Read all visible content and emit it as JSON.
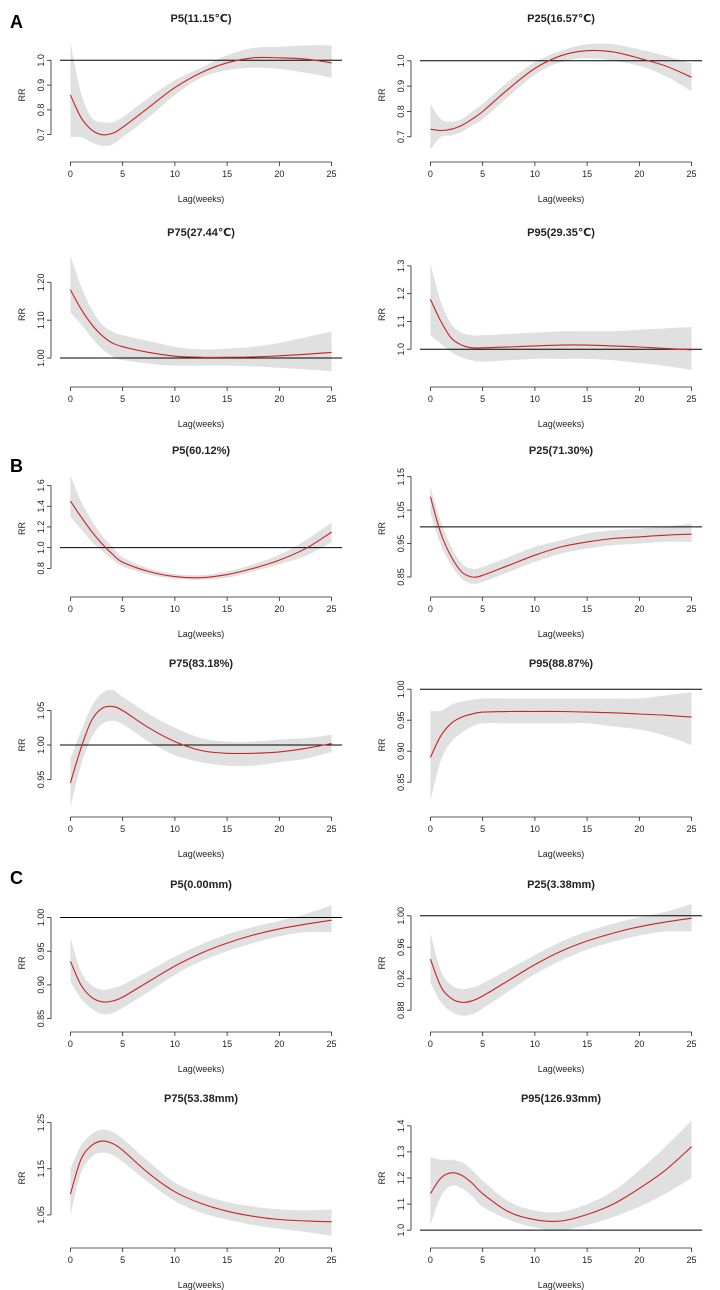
{
  "figure": {
    "panel_labels": [
      "A",
      "B",
      "C"
    ]
  },
  "colors": {
    "ci": "#e0e0e0",
    "line": "#cc2222",
    "axis": "#222222",
    "ref": "#000000"
  },
  "chart_data": [
    {
      "type": "line",
      "group": "A",
      "title": "P5(11.15℃)",
      "xlabel": "Lag(weeks)",
      "ylabel": "RR",
      "x": [
        0,
        1,
        2,
        3,
        4,
        5,
        7.5,
        10,
        12.5,
        15,
        17.5,
        20,
        22.5,
        25
      ],
      "y": [
        0.86,
        0.77,
        0.72,
        0.7,
        0.705,
        0.73,
        0.81,
        0.89,
        0.95,
        0.99,
        1.01,
        1.01,
        1.005,
        0.99
      ],
      "lower": [
        0.69,
        0.69,
        0.67,
        0.655,
        0.66,
        0.69,
        0.77,
        0.86,
        0.93,
        0.96,
        0.97,
        0.965,
        0.95,
        0.93
      ],
      "upper": [
        1.07,
        0.87,
        0.77,
        0.75,
        0.75,
        0.77,
        0.85,
        0.92,
        0.97,
        1.02,
        1.05,
        1.055,
        1.06,
        1.06
      ],
      "yticks": [
        0.7,
        0.8,
        0.9,
        1.0
      ],
      "ytick_labels": [
        "0.7",
        "0.8",
        "0.9",
        "1.0"
      ],
      "xticks": [
        0,
        5,
        10,
        15,
        20,
        25
      ],
      "xtick_labels": [
        "0",
        "5",
        "10",
        "15",
        "20",
        "25"
      ],
      "ylim": [
        0.63,
        1.09
      ],
      "xlim": [
        -1,
        26
      ],
      "reference": 1.0
    },
    {
      "type": "line",
      "group": "A",
      "title": "P25(16.57℃)",
      "xlabel": "Lag(weeks)",
      "ylabel": "RR",
      "x": [
        0,
        1,
        2,
        3,
        4,
        5,
        7.5,
        10,
        12.5,
        15,
        17.5,
        20,
        22.5,
        25
      ],
      "y": [
        0.73,
        0.725,
        0.73,
        0.745,
        0.77,
        0.8,
        0.89,
        0.97,
        1.02,
        1.04,
        1.035,
        1.01,
        0.98,
        0.935
      ],
      "lower": [
        0.65,
        0.7,
        0.705,
        0.72,
        0.745,
        0.77,
        0.86,
        0.945,
        0.995,
        1.01,
        1.0,
        0.98,
        0.94,
        0.88
      ],
      "upper": [
        0.83,
        0.77,
        0.76,
        0.77,
        0.8,
        0.83,
        0.92,
        0.995,
        1.04,
        1.065,
        1.065,
        1.045,
        1.02,
        0.99
      ],
      "yticks": [
        0.7,
        0.8,
        0.9,
        1.0
      ],
      "ytick_labels": [
        "0.7",
        "0.8",
        "0.9",
        "1.0"
      ],
      "xticks": [
        0,
        5,
        10,
        15,
        20,
        25
      ],
      "xtick_labels": [
        "0",
        "5",
        "10",
        "15",
        "20",
        "25"
      ],
      "ylim": [
        0.64,
        1.09
      ],
      "xlim": [
        -1,
        26
      ],
      "reference": 1.0
    },
    {
      "type": "line",
      "group": "A",
      "title": "P75(27.44℃)",
      "xlabel": "Lag(weeks)",
      "ylabel": "RR",
      "x": [
        0,
        1,
        2,
        3,
        4,
        5,
        7.5,
        10,
        12.5,
        15,
        17.5,
        20,
        22.5,
        25
      ],
      "y": [
        1.18,
        1.13,
        1.09,
        1.06,
        1.04,
        1.03,
        1.015,
        1.005,
        1.002,
        1.002,
        1.003,
        1.006,
        1.01,
        1.015
      ],
      "lower": [
        1.12,
        1.09,
        1.055,
        1.025,
        1.005,
        0.995,
        0.985,
        0.98,
        0.98,
        0.98,
        0.978,
        0.974,
        0.97,
        0.965
      ],
      "upper": [
        1.27,
        1.19,
        1.13,
        1.09,
        1.07,
        1.06,
        1.045,
        1.03,
        1.023,
        1.025,
        1.03,
        1.04,
        1.055,
        1.07
      ],
      "yticks": [
        1.0,
        1.1,
        1.2
      ],
      "ytick_labels": [
        "1.00",
        "1.10",
        "1.20"
      ],
      "xticks": [
        0,
        5,
        10,
        15,
        20,
        25
      ],
      "xtick_labels": [
        "0",
        "5",
        "10",
        "15",
        "20",
        "25"
      ],
      "ylim": [
        0.95,
        1.28
      ],
      "xlim": [
        -1,
        26
      ],
      "reference": 1.0
    },
    {
      "type": "line",
      "group": "A",
      "title": "P95(29.35℃)",
      "xlabel": "Lag(weeks)",
      "ylabel": "RR",
      "x": [
        0,
        1,
        2,
        3,
        4,
        5,
        7.5,
        10,
        12.5,
        15,
        17.5,
        20,
        22.5,
        25
      ],
      "y": [
        1.18,
        1.1,
        1.04,
        1.015,
        1.005,
        1.005,
        1.008,
        1.012,
        1.015,
        1.015,
        1.012,
        1.008,
        1.003,
        0.998
      ],
      "lower": [
        1.05,
        1.02,
        0.99,
        0.97,
        0.96,
        0.955,
        0.96,
        0.965,
        0.965,
        0.965,
        0.96,
        0.95,
        0.94,
        0.925
      ],
      "upper": [
        1.31,
        1.17,
        1.09,
        1.06,
        1.05,
        1.05,
        1.055,
        1.06,
        1.065,
        1.065,
        1.065,
        1.07,
        1.075,
        1.08
      ],
      "yticks": [
        1.0,
        1.1,
        1.2,
        1.3
      ],
      "ytick_labels": [
        "1.0",
        "1.1",
        "1.2",
        "1.3"
      ],
      "xticks": [
        0,
        5,
        10,
        15,
        20,
        25
      ],
      "xtick_labels": [
        "0",
        "5",
        "10",
        "15",
        "20",
        "25"
      ],
      "ylim": [
        0.9,
        1.35
      ],
      "xlim": [
        -1,
        26
      ],
      "reference": 1.0
    },
    {
      "type": "line",
      "group": "B",
      "title": "P5(60.12%)",
      "xlabel": "Lag(weeks)",
      "ylabel": "RR",
      "x": [
        0,
        1,
        2,
        3,
        4,
        5,
        7.5,
        10,
        12.5,
        15,
        17.5,
        20,
        22.5,
        25
      ],
      "y": [
        1.45,
        1.3,
        1.16,
        1.04,
        0.94,
        0.86,
        0.77,
        0.72,
        0.71,
        0.74,
        0.8,
        0.88,
        0.99,
        1.15
      ],
      "lower": [
        1.3,
        1.18,
        1.06,
        0.97,
        0.89,
        0.82,
        0.74,
        0.7,
        0.69,
        0.71,
        0.77,
        0.84,
        0.92,
        1.05
      ],
      "upper": [
        1.7,
        1.45,
        1.27,
        1.12,
        1.01,
        0.91,
        0.8,
        0.745,
        0.735,
        0.77,
        0.84,
        0.93,
        1.07,
        1.24
      ],
      "yticks": [
        0.8,
        1.0,
        1.2,
        1.4,
        1.6
      ],
      "ytick_labels": [
        "0.8",
        "1.0",
        "1.2",
        "1.4",
        "1.6"
      ],
      "xticks": [
        0,
        5,
        10,
        15,
        20,
        25
      ],
      "xtick_labels": [
        "0",
        "5",
        "10",
        "15",
        "20",
        "25"
      ],
      "ylim": [
        0.62,
        1.75
      ],
      "xlim": [
        -1,
        26
      ],
      "reference": 1.0
    },
    {
      "type": "line",
      "group": "B",
      "title": "P25(71.30%)",
      "xlabel": "Lag(weeks)",
      "ylabel": "RR",
      "x": [
        0,
        1,
        2,
        3,
        4,
        5,
        7.5,
        10,
        12.5,
        15,
        17.5,
        20,
        22.5,
        25
      ],
      "y": [
        1.09,
        0.98,
        0.91,
        0.865,
        0.85,
        0.855,
        0.885,
        0.915,
        0.94,
        0.955,
        0.965,
        0.97,
        0.975,
        0.978
      ],
      "lower": [
        1.04,
        0.945,
        0.885,
        0.845,
        0.83,
        0.835,
        0.865,
        0.895,
        0.92,
        0.935,
        0.945,
        0.95,
        0.955,
        0.955
      ],
      "upper": [
        1.12,
        1.015,
        0.94,
        0.89,
        0.875,
        0.88,
        0.91,
        0.94,
        0.96,
        0.98,
        0.99,
        0.995,
        1.0,
        1.01
      ],
      "yticks": [
        0.85,
        0.95,
        1.05,
        1.15
      ],
      "ytick_labels": [
        "0.85",
        "0.95",
        "1.05",
        "1.15"
      ],
      "xticks": [
        0,
        5,
        10,
        15,
        20,
        25
      ],
      "xtick_labels": [
        "0",
        "5",
        "10",
        "15",
        "20",
        "25"
      ],
      "ylim": [
        0.82,
        1.17
      ],
      "xlim": [
        -1,
        26
      ],
      "reference": 1.0
    },
    {
      "type": "line",
      "group": "B",
      "title": "P75(83.18%)",
      "xlabel": "Lag(weeks)",
      "ylabel": "RR",
      "x": [
        0,
        1,
        2,
        3,
        4,
        5,
        7.5,
        10,
        12.5,
        15,
        17.5,
        20,
        22.5,
        25
      ],
      "y": [
        0.945,
        0.995,
        1.035,
        1.053,
        1.056,
        1.05,
        1.025,
        1.005,
        0.992,
        0.988,
        0.988,
        0.99,
        0.995,
        1.002
      ],
      "lower": [
        0.91,
        0.97,
        1.01,
        1.03,
        1.035,
        1.03,
        1.005,
        0.985,
        0.975,
        0.97,
        0.97,
        0.975,
        0.98,
        0.99
      ],
      "upper": [
        0.98,
        1.02,
        1.055,
        1.075,
        1.08,
        1.07,
        1.045,
        1.025,
        1.01,
        1.005,
        1.005,
        1.008,
        1.01,
        1.015
      ],
      "yticks": [
        0.95,
        1.0,
        1.05
      ],
      "ytick_labels": [
        "0.95",
        "1.00",
        "1.05"
      ],
      "xticks": [
        0,
        5,
        10,
        15,
        20,
        25
      ],
      "xtick_labels": [
        "0",
        "5",
        "10",
        "15",
        "20",
        "25"
      ],
      "ylim": [
        0.91,
        1.09
      ],
      "xlim": [
        -1,
        26
      ],
      "reference": 1.0
    },
    {
      "type": "line",
      "group": "B",
      "title": "P95(88.87%)",
      "xlabel": "Lag(weeks)",
      "ylabel": "RR",
      "x": [
        0,
        1,
        2,
        3,
        4,
        5,
        7.5,
        10,
        12.5,
        15,
        17.5,
        20,
        22.5,
        25
      ],
      "y": [
        0.89,
        0.925,
        0.945,
        0.955,
        0.96,
        0.963,
        0.964,
        0.964,
        0.964,
        0.963,
        0.962,
        0.96,
        0.958,
        0.955
      ],
      "lower": [
        0.82,
        0.885,
        0.915,
        0.93,
        0.94,
        0.945,
        0.945,
        0.945,
        0.945,
        0.945,
        0.94,
        0.935,
        0.925,
        0.91
      ],
      "upper": [
        0.965,
        0.965,
        0.975,
        0.98,
        0.983,
        0.985,
        0.985,
        0.985,
        0.985,
        0.985,
        0.985,
        0.985,
        0.99,
        0.995
      ],
      "yticks": [
        0.85,
        0.9,
        0.95,
        1.0
      ],
      "ytick_labels": [
        "0.85",
        "0.90",
        "0.95",
        "1.00"
      ],
      "xticks": [
        0,
        5,
        10,
        15,
        20,
        25
      ],
      "xtick_labels": [
        "0",
        "5",
        "10",
        "15",
        "20",
        "25"
      ],
      "ylim": [
        0.81,
        1.01
      ],
      "xlim": [
        -1,
        26
      ],
      "reference": 1.0
    },
    {
      "type": "line",
      "group": "C",
      "title": "P5(0.00mm)",
      "xlabel": "Lag(weeks)",
      "ylabel": "RR",
      "x": [
        0,
        1,
        2,
        3,
        4,
        5,
        7.5,
        10,
        12.5,
        15,
        17.5,
        20,
        22.5,
        25
      ],
      "y": [
        0.935,
        0.9,
        0.882,
        0.875,
        0.876,
        0.882,
        0.905,
        0.928,
        0.947,
        0.962,
        0.974,
        0.983,
        0.99,
        0.996
      ],
      "lower": [
        0.905,
        0.88,
        0.865,
        0.857,
        0.858,
        0.866,
        0.89,
        0.915,
        0.935,
        0.95,
        0.962,
        0.972,
        0.978,
        0.978
      ],
      "upper": [
        0.97,
        0.92,
        0.9,
        0.893,
        0.895,
        0.9,
        0.921,
        0.942,
        0.96,
        0.975,
        0.986,
        0.995,
        1.005,
        1.018
      ],
      "yticks": [
        0.85,
        0.9,
        0.95,
        1.0
      ],
      "ytick_labels": [
        "0.85",
        "0.90",
        "0.95",
        "1.00"
      ],
      "xticks": [
        0,
        5,
        10,
        15,
        20,
        25
      ],
      "xtick_labels": [
        "0",
        "5",
        "10",
        "15",
        "20",
        "25"
      ],
      "ylim": [
        0.845,
        1.02
      ],
      "xlim": [
        -1,
        26
      ],
      "reference": 1.0
    },
    {
      "type": "line",
      "group": "C",
      "title": "P25(3.38mm)",
      "xlabel": "Lag(weeks)",
      "ylabel": "RR",
      "x": [
        0,
        1,
        2,
        3,
        4,
        5,
        7.5,
        10,
        12.5,
        15,
        17.5,
        20,
        22.5,
        25
      ],
      "y": [
        0.945,
        0.91,
        0.895,
        0.89,
        0.892,
        0.898,
        0.918,
        0.938,
        0.955,
        0.968,
        0.978,
        0.986,
        0.992,
        0.997
      ],
      "lower": [
        0.915,
        0.89,
        0.878,
        0.873,
        0.875,
        0.882,
        0.904,
        0.926,
        0.943,
        0.957,
        0.967,
        0.975,
        0.98,
        0.98
      ],
      "upper": [
        0.978,
        0.93,
        0.912,
        0.907,
        0.909,
        0.914,
        0.932,
        0.95,
        0.967,
        0.98,
        0.99,
        0.998,
        1.005,
        1.015
      ],
      "yticks": [
        0.88,
        0.92,
        0.96,
        1.0
      ],
      "ytick_labels": [
        "0.88",
        "0.92",
        "0.96",
        "1.00"
      ],
      "xticks": [
        0,
        5,
        10,
        15,
        20,
        25
      ],
      "xtick_labels": [
        "0",
        "5",
        "10",
        "15",
        "20",
        "25"
      ],
      "ylim": [
        0.865,
        1.015
      ],
      "xlim": [
        -1,
        26
      ],
      "reference": 1.0
    },
    {
      "type": "line",
      "group": "C",
      "title": "P75(53.38mm)",
      "xlabel": "Lag(weeks)",
      "ylabel": "RR",
      "x": [
        0,
        1,
        2,
        3,
        4,
        5,
        7.5,
        10,
        12.5,
        15,
        17.5,
        20,
        22.5,
        25
      ],
      "y": [
        1.095,
        1.17,
        1.2,
        1.21,
        1.205,
        1.19,
        1.14,
        1.1,
        1.075,
        1.058,
        1.047,
        1.04,
        1.037,
        1.035
      ],
      "lower": [
        1.05,
        1.14,
        1.175,
        1.185,
        1.18,
        1.165,
        1.12,
        1.08,
        1.055,
        1.04,
        1.028,
        1.02,
        1.013,
        1.005
      ],
      "upper": [
        1.15,
        1.2,
        1.225,
        1.235,
        1.23,
        1.215,
        1.165,
        1.12,
        1.095,
        1.078,
        1.068,
        1.062,
        1.06,
        1.062
      ],
      "yticks": [
        1.05,
        1.15,
        1.25
      ],
      "ytick_labels": [
        "1.05",
        "1.15",
        "1.25"
      ],
      "xticks": [
        0,
        5,
        10,
        15,
        20,
        25
      ],
      "xtick_labels": [
        "0",
        "5",
        "10",
        "15",
        "20",
        "25"
      ],
      "ylim": [
        1.0,
        1.26
      ],
      "xlim": [
        -1,
        26
      ],
      "reference": null
    },
    {
      "type": "line",
      "group": "C",
      "title": "P95(126.93mm)",
      "xlabel": "Lag(weeks)",
      "ylabel": "RR",
      "x": [
        0,
        1,
        2,
        3,
        4,
        5,
        7.5,
        10,
        12.5,
        15,
        17.5,
        20,
        22.5,
        25
      ],
      "y": [
        1.14,
        1.2,
        1.22,
        1.21,
        1.18,
        1.14,
        1.07,
        1.04,
        1.035,
        1.06,
        1.1,
        1.16,
        1.23,
        1.32
      ],
      "lower": [
        1.02,
        1.13,
        1.17,
        1.16,
        1.13,
        1.09,
        1.04,
        1.01,
        1.0,
        1.02,
        1.05,
        1.09,
        1.14,
        1.2
      ],
      "upper": [
        1.28,
        1.27,
        1.27,
        1.26,
        1.23,
        1.19,
        1.11,
        1.075,
        1.07,
        1.1,
        1.15,
        1.23,
        1.32,
        1.42
      ],
      "yticks": [
        1.0,
        1.1,
        1.2,
        1.3,
        1.4
      ],
      "ytick_labels": [
        "1.0",
        "1.1",
        "1.2",
        "1.3",
        "1.4"
      ],
      "xticks": [
        0,
        5,
        10,
        15,
        20,
        25
      ],
      "xtick_labels": [
        "0",
        "5",
        "10",
        "15",
        "20",
        "25"
      ],
      "ylim": [
        0.97,
        1.43
      ],
      "xlim": [
        -1,
        26
      ],
      "reference": 1.0
    }
  ]
}
